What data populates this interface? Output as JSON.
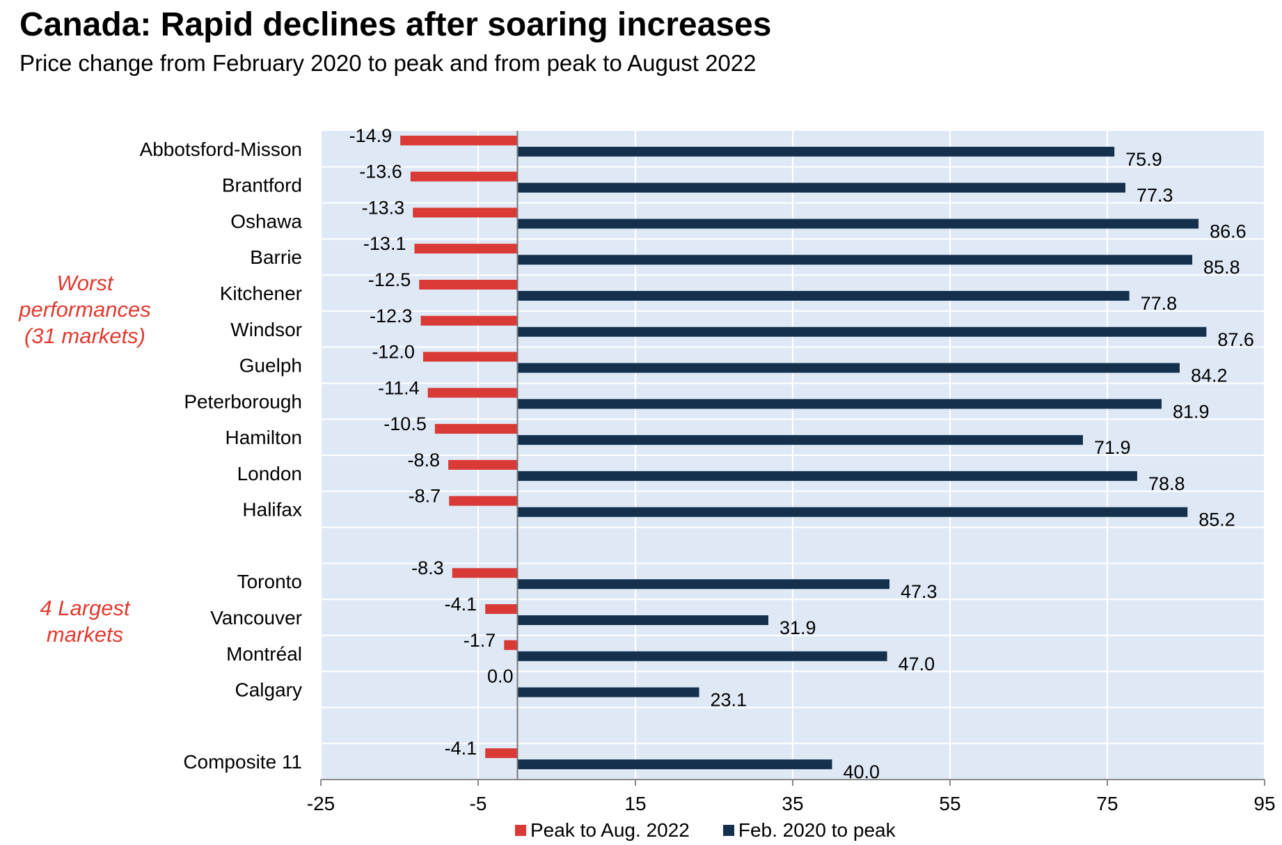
{
  "title": "Canada: Rapid declines after soaring increases",
  "subtitle": "Price change from February 2020 to peak and from peak to August 2022",
  "group_labels": {
    "worst": [
      "Worst",
      "performances",
      "(31 markets)"
    ],
    "largest": [
      "4 Largest",
      "markets"
    ]
  },
  "legend": {
    "peak_to_aug": "Peak to Aug. 2022",
    "feb_to_peak": "Feb. 2020 to peak"
  },
  "colors": {
    "peak_to_aug": "#d93a35",
    "feb_to_peak": "#15304d",
    "plot_background": "#dfe9f6",
    "grid": "#ffffff",
    "group_label": "#e03a2f"
  },
  "chart_data": {
    "type": "bar",
    "orientation": "horizontal",
    "categories": [
      "Abbotsford-Misson",
      "Brantford",
      "Oshawa",
      "Barrie",
      "Kitchener",
      "Windsor",
      "Guelph",
      "Peterborough",
      "Hamilton",
      "London",
      "Halifax",
      "",
      "Toronto",
      "Vancouver",
      "Montréal",
      "Calgary",
      "",
      "Composite 11"
    ],
    "series": [
      {
        "name": "Peak to Aug. 2022",
        "values": [
          -14.9,
          -13.6,
          -13.3,
          -13.1,
          -12.5,
          -12.3,
          -12.0,
          -11.4,
          -10.5,
          -8.8,
          -8.7,
          null,
          -8.3,
          -4.1,
          -1.7,
          0.0,
          null,
          -4.1
        ]
      },
      {
        "name": "Feb. 2020 to peak",
        "values": [
          75.9,
          77.3,
          86.6,
          85.8,
          77.8,
          87.6,
          84.2,
          81.9,
          71.9,
          78.8,
          85.2,
          null,
          47.3,
          31.9,
          47.0,
          23.1,
          null,
          40.0
        ]
      }
    ],
    "value_labels": {
      "peak_to_aug": [
        "-14.9",
        "-13.6",
        "-13.3",
        "-13.1",
        "-12.5",
        "-12.3",
        "-12.0",
        "-11.4",
        "-10.5",
        "-8.8",
        "-8.7",
        "",
        "-8.3",
        "-4.1",
        "-1.7",
        "0.0",
        "",
        "-4.1"
      ],
      "feb_to_peak": [
        "75.9",
        "77.3",
        "86.6",
        "85.8",
        "77.8",
        "87.6",
        "84.2",
        "81.9",
        "71.9",
        "78.8",
        "85.2",
        "",
        "47.3",
        "31.9",
        "47.0",
        "23.1",
        "",
        "40.0"
      ]
    },
    "x_ticks": [
      -25,
      -5,
      15,
      35,
      55,
      75,
      95
    ],
    "x_tick_labels": [
      "-25",
      "-5",
      "15",
      "35",
      "55",
      "75",
      "95"
    ],
    "xlim": [
      -25,
      95
    ],
    "grid": true,
    "legend_position": "bottom"
  }
}
